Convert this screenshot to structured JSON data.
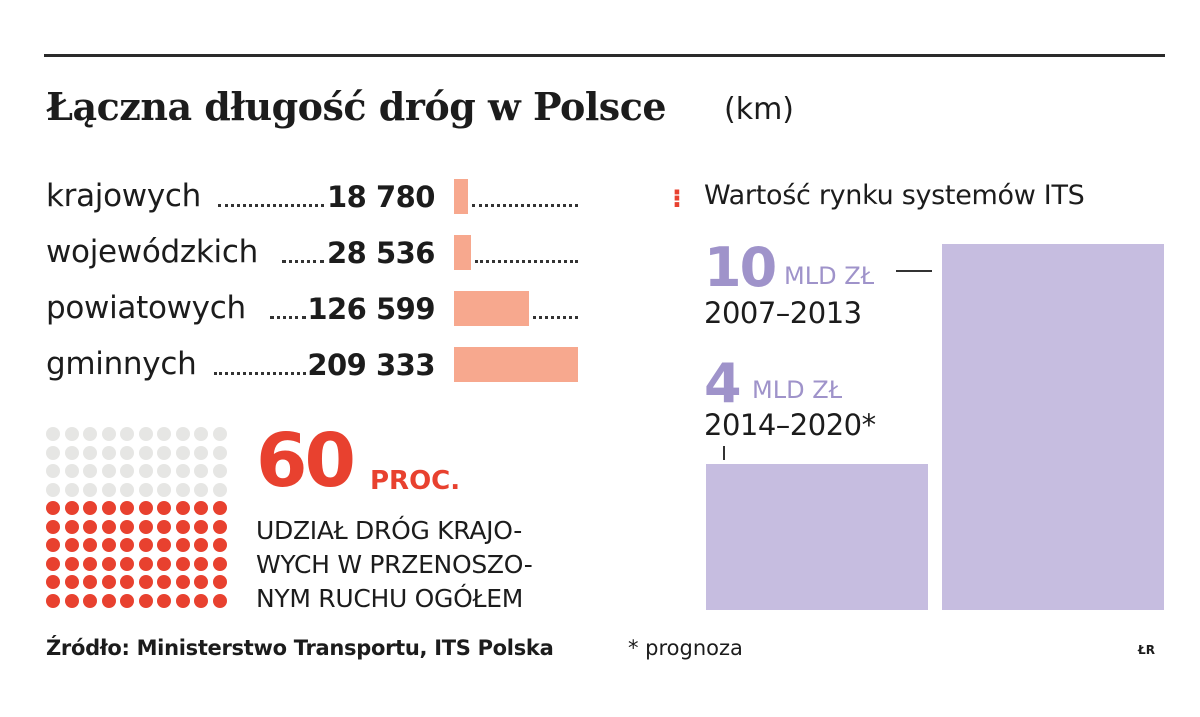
{
  "chart_data": [
    {
      "type": "bar",
      "title": "Łączna długość dróg w Polsce",
      "unit": "(km)",
      "categories": [
        "krajowych",
        "wojewódzkich",
        "powiatowych",
        "gminnych"
      ],
      "values": [
        18780,
        28536,
        126599,
        209333
      ],
      "value_labels": [
        "18 780",
        "28 536",
        "126 599",
        "209 333"
      ],
      "bar_color": "#f7a88e"
    },
    {
      "type": "bar",
      "title": "Wartość rynku systemów ITS",
      "categories": [
        "2014–2020*",
        "2007–2013"
      ],
      "values": [
        4,
        10
      ],
      "value_labels": [
        "4",
        "10"
      ],
      "unit": "MLD ZŁ",
      "bar_color": "#c6bde0"
    }
  ],
  "share": {
    "value": "60",
    "unit": "PROC.",
    "description": "UDZIAŁ DRÓG KRAJO-WYCH W PRZENOSZO-NYM RUCHU OGÓŁEM",
    "filled": 60,
    "total": 100,
    "filled_color": "#e8412f",
    "empty_color": "#e6e6e4"
  },
  "its": {
    "marker": "⁝",
    "title": "Wartość rynku systemów ITS",
    "unit": "MLD ZŁ",
    "items": [
      {
        "value": "10",
        "period": "2007–2013"
      },
      {
        "value": "4",
        "period": "2014–2020*"
      }
    ]
  },
  "footer": {
    "source": "Źródło: Ministerstwo Transportu, ITS Polska",
    "note": "* prognoza",
    "author": "ŁR"
  }
}
